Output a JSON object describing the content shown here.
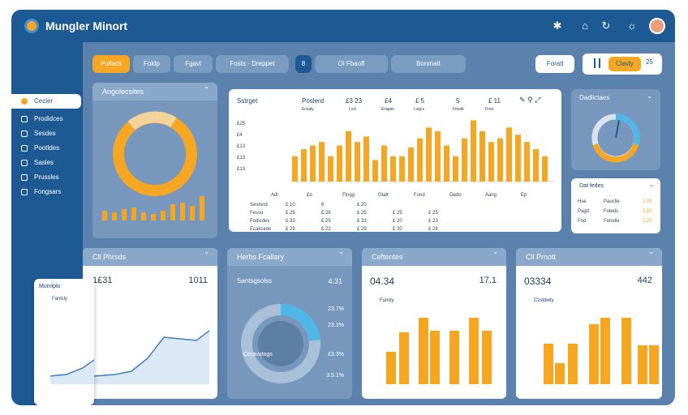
{
  "app": {
    "title": "Mungler Minort"
  },
  "nav": [
    {
      "label": "Cecler"
    },
    {
      "label": "Prodidces"
    },
    {
      "label": "Sesdes"
    },
    {
      "label": "Pootldes"
    },
    {
      "label": "Sasles"
    },
    {
      "label": "Prussles"
    },
    {
      "label": "Fongsars"
    }
  ],
  "toolbar": {
    "p1": "Puflacs",
    "p2": "Foldp",
    "p3": "Fgavl",
    "p4": "Fosts · Dreppet",
    "p5": "8",
    "p6": "Ol Fbaoff",
    "p7": "Bonmatt",
    "contact": "Foratl",
    "chip": "Clavly",
    "chip_count": "25"
  },
  "donut_card": {
    "title": "Angolecsites"
  },
  "main_card": {
    "tabs": [
      "Sstrget",
      "Poslerd",
      "£3 23",
      "£4",
      "£ 5",
      "5",
      "£ 11"
    ],
    "sub": [
      "Ecsaly",
      "Lxxl",
      "Erapas",
      "Lsqcs",
      "Fmotk",
      "Frne"
    ],
    "ylabels": [
      "£25",
      "£4",
      "£13",
      "£13",
      "£13"
    ],
    "headers": [
      "Adl",
      "£o",
      "Flngg",
      "Glatt",
      "Fund",
      "Gedo",
      "Aang",
      "Ep"
    ],
    "rows": [
      [
        "Seslond",
        "£ 10",
        "6",
        "£ 20",
        "",
        ""
      ],
      [
        "Fesso",
        "£ 25",
        "£ 26",
        "£ 25",
        "£ 25",
        "£ 25"
      ],
      [
        "Fodicdes",
        "£ 33",
        "£ 25",
        "£ 33",
        "£ 20",
        "£ 23"
      ],
      [
        "Ecakcede",
        "£ 29",
        "£ 22",
        "£ 29",
        "£ 20",
        "£ 28"
      ]
    ]
  },
  "chart_data": {
    "type": "bar",
    "values": [
      14,
      18,
      20,
      22,
      14,
      20,
      28,
      22,
      25,
      12,
      20,
      14,
      14,
      19,
      24,
      30,
      28,
      20,
      14,
      24,
      34,
      28,
      22,
      24,
      30,
      26,
      22,
      18,
      14
    ]
  },
  "radial_card": {
    "title": "Dadlictaes"
  },
  "stats_card": {
    "title": "Dat fedes",
    "rows": [
      [
        "Hse",
        "Pauclle",
        "1.05"
      ],
      [
        "Pagd",
        "Foleds",
        "1.85"
      ],
      [
        "Fnd",
        "Fenelle",
        "1.25"
      ]
    ]
  },
  "bottom": [
    {
      "title": "Cll Phrsds",
      "val1": "1£31",
      "val2": "1011",
      "floating": "Mumlplo"
    },
    {
      "title": "Herbs Fcallary",
      "sub": "Santsgsolss",
      "s1": "4.31",
      "s2": "23.7%",
      "s3": "23.3%",
      "s4": "£3.3%",
      "s5": "3.5.1%",
      "inner": "Coravotogs"
    },
    {
      "title": "Ceftentes",
      "val1": "04.34",
      "val2": "17.1",
      "sub": "Furrdy"
    },
    {
      "title": "Cll Prnott",
      "val1": "03334",
      "val2": "442",
      "sub": "Czstdwty"
    }
  ]
}
